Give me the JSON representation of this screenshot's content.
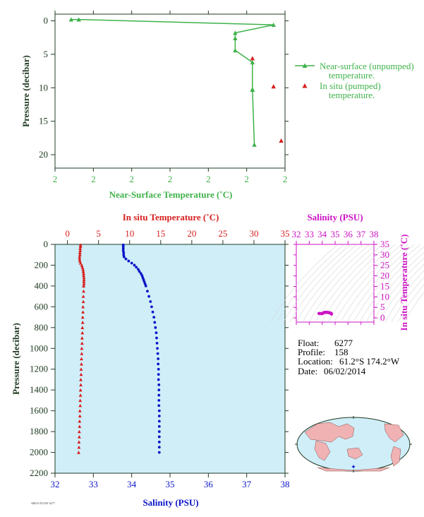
{
  "colors": {
    "green": "#3fb24a",
    "red": "#d81e1e",
    "blue": "#0a14c8",
    "magenta": "#cc12c4",
    "dark": "#1f3a22",
    "plotBg": "#cfeef8",
    "land": "#f0b2b2",
    "ocean": "#cfeef8"
  },
  "float_info": {
    "float_label": "Float:",
    "float_value": "6277",
    "profile_label": "Profile:",
    "profile_value": "158",
    "location_label": "Location:",
    "location_value": "61.2°S  174.2°W",
    "date_label": "Date:",
    "date_value": "06/02/2014"
  },
  "footer_text": "ARGO FLOAT 6277",
  "chart_data": [
    {
      "type": "scatter",
      "xlabel": "Near-Surface Temperature (˚C)",
      "ylabel": "Pressure (decibar)",
      "xticks": [
        "2",
        "2",
        "2",
        "2",
        "2",
        "2",
        "2"
      ],
      "xlim": [
        1.0,
        7.0
      ],
      "ylim": [
        22,
        -1
      ],
      "yticks": [
        0,
        5,
        10,
        15,
        20
      ],
      "legend_position": "right",
      "series": [
        {
          "name": "Near-surface (unpumped) temperature.",
          "marker": "triangle-line",
          "x": [
            1.42,
            1.62,
            6.7,
            5.7,
            5.7,
            5.7,
            6.15,
            6.15,
            6.15,
            6.2
          ],
          "y": [
            -0.2,
            -0.2,
            0.6,
            1.8,
            2.6,
            4.4,
            6.2,
            10.2,
            10.3,
            18.5
          ]
        },
        {
          "name": "In situ (pumped) temperature.",
          "marker": "triangle",
          "x": [
            6.15,
            6.7,
            6.9
          ],
          "y": [
            5.6,
            9.8,
            17.9
          ]
        }
      ]
    },
    {
      "type": "scatter",
      "title_top": "In situ Temperature (˚C)",
      "xlabel": "Salinity (PSU)",
      "ylabel": "Pressure (decibar)",
      "temp_xlim": [
        -2,
        35
      ],
      "temp_ticks": [
        0,
        5,
        10,
        15,
        20,
        25,
        30,
        35
      ],
      "sal_xlim": [
        32,
        38
      ],
      "sal_ticks": [
        32,
        33,
        34,
        35,
        36,
        37,
        38
      ],
      "ylim": [
        2200,
        0
      ],
      "yticks": [
        0,
        200,
        400,
        600,
        800,
        1000,
        1200,
        1400,
        1600,
        1800,
        2000,
        2200
      ],
      "temperature_profile": {
        "name": "In situ Temperature",
        "pressure": [
          5,
          20,
          40,
          60,
          80,
          100,
          120,
          140,
          160,
          180,
          200,
          220,
          240,
          260,
          280,
          300,
          320,
          340,
          360,
          380,
          400,
          450,
          500,
          550,
          600,
          650,
          700,
          750,
          800,
          850,
          900,
          950,
          1000,
          1050,
          1100,
          1150,
          1200,
          1250,
          1300,
          1350,
          1400,
          1450,
          1500,
          1550,
          1600,
          1650,
          1700,
          1750,
          1800,
          1850,
          1900,
          1950,
          2000
        ],
        "temperature": [
          2.1,
          2.1,
          2.05,
          2.05,
          2.0,
          2.0,
          1.95,
          1.95,
          2.0,
          2.1,
          2.3,
          2.4,
          2.5,
          2.55,
          2.6,
          2.6,
          2.65,
          2.65,
          2.65,
          2.65,
          2.6,
          2.6,
          2.55,
          2.55,
          2.5,
          2.5,
          2.45,
          2.45,
          2.4,
          2.4,
          2.35,
          2.35,
          2.3,
          2.3,
          2.25,
          2.25,
          2.2,
          2.2,
          2.15,
          2.15,
          2.1,
          2.1,
          2.05,
          2.05,
          2.0,
          2.0,
          1.95,
          1.95,
          1.9,
          1.9,
          1.85,
          1.85,
          1.8
        ]
      },
      "salinity_profile": {
        "name": "Salinity",
        "pressure": [
          5,
          20,
          40,
          60,
          80,
          100,
          120,
          140,
          160,
          180,
          200,
          220,
          240,
          260,
          280,
          300,
          320,
          340,
          360,
          380,
          400,
          450,
          500,
          550,
          600,
          650,
          700,
          750,
          800,
          850,
          900,
          950,
          1000,
          1050,
          1100,
          1150,
          1200,
          1250,
          1300,
          1350,
          1400,
          1450,
          1500,
          1550,
          1600,
          1650,
          1700,
          1750,
          1800,
          1850,
          1900,
          1950,
          2000
        ],
        "salinity": [
          33.78,
          33.78,
          33.78,
          33.78,
          33.79,
          33.79,
          33.8,
          33.85,
          33.92,
          34.0,
          34.07,
          34.12,
          34.17,
          34.2,
          34.24,
          34.27,
          34.29,
          34.31,
          34.33,
          34.35,
          34.37,
          34.41,
          34.45,
          34.49,
          34.52,
          34.55,
          34.58,
          34.6,
          34.62,
          34.64,
          34.65,
          34.66,
          34.67,
          34.68,
          34.69,
          34.69,
          34.7,
          34.7,
          34.7,
          34.71,
          34.71,
          34.71,
          34.71,
          34.71,
          34.72,
          34.72,
          34.72,
          34.72,
          34.72,
          34.72,
          34.72,
          34.72,
          34.72
        ]
      }
    },
    {
      "type": "scatter",
      "title": "Salinity (PSU)",
      "ylabel": "In situ Temperature (˚C)",
      "xlim": [
        32,
        38
      ],
      "xticks": [
        32,
        33,
        34,
        35,
        36,
        37,
        38
      ],
      "ylim": [
        -2,
        35
      ],
      "yticks": [
        0,
        5,
        10,
        15,
        20,
        25,
        30,
        35
      ],
      "points": {
        "salinity": [
          33.75,
          33.8,
          33.85,
          33.9,
          33.95,
          34.0,
          34.05,
          34.1,
          34.15,
          34.2,
          34.25,
          34.3,
          34.35,
          34.4,
          34.45,
          34.5,
          34.55,
          34.6,
          34.65,
          34.7,
          34.72
        ],
        "temperature": [
          2.1,
          2.1,
          2.05,
          2.0,
          2.0,
          2.0,
          2.2,
          2.4,
          2.55,
          2.6,
          2.65,
          2.65,
          2.65,
          2.6,
          2.55,
          2.5,
          2.45,
          2.4,
          2.3,
          2.1,
          1.8
        ]
      }
    }
  ]
}
